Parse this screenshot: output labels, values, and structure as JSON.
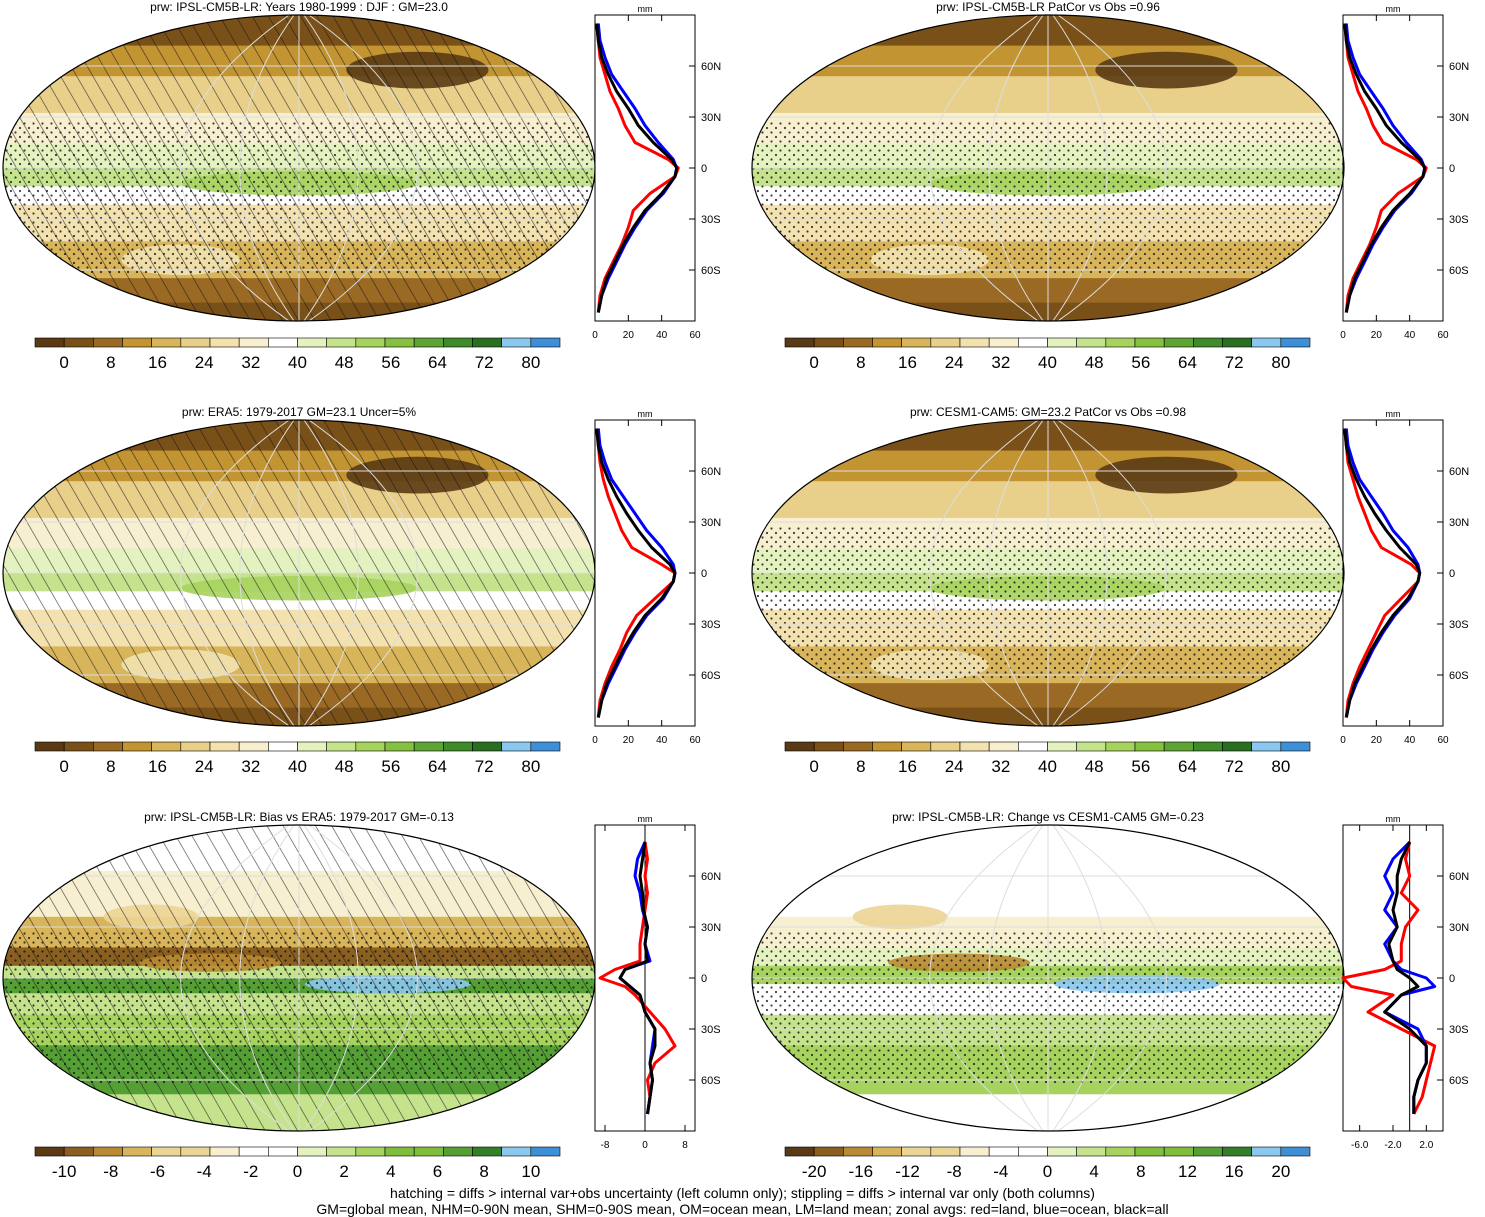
{
  "figure": {
    "footer_line1": "hatching = diffs > internal var+obs uncertainty (left column only); stippling = diffs > internal var only (both columns)",
    "footer_line2": "GM=global mean, NHM=0-90N mean, SHM=0-90S mean, OM=ocean mean, LM=land mean; zonal avgs: red=land, blue=ocean, black=all"
  },
  "colors": {
    "land": "#ff0000",
    "ocean": "#0000ff",
    "all": "#000000",
    "palette_abs": [
      "#5a3a14",
      "#7a5019",
      "#9a6a24",
      "#c29432",
      "#d8b45a",
      "#e8cf8a",
      "#f3e2b0",
      "#f8efd0",
      "#ffffff",
      "#e4f2bf",
      "#c5e38c",
      "#a6d35e",
      "#86c040",
      "#5ea334",
      "#3f8a2a",
      "#2a6e22",
      "#8ac8f0",
      "#3f8fd6"
    ]
  },
  "panels": [
    {
      "title": "prw: IPSL-CM5B-LR: Years 1980-1999 : DJF : GM=23.0",
      "overlay": "hatch+stipple",
      "colorbar_labels": [
        "0",
        "8",
        "16",
        "24",
        "32",
        "40",
        "48",
        "56",
        "64",
        "72",
        "80"
      ],
      "zonal": {
        "unit": "mm",
        "xticks": [
          "0",
          "20",
          "40",
          "60"
        ],
        "xlim": [
          0,
          60
        ],
        "lat_labels": [
          "60N",
          "30N",
          "0",
          "30S",
          "60S"
        ]
      }
    },
    {
      "title": "prw: IPSL-CM5B-LR PatCor vs Obs =0.96",
      "overlay": "stipple",
      "colorbar_labels": [
        "0",
        "8",
        "16",
        "24",
        "32",
        "40",
        "48",
        "56",
        "64",
        "72",
        "80"
      ],
      "zonal": {
        "unit": "mm",
        "xticks": [
          "0",
          "20",
          "40",
          "60"
        ],
        "xlim": [
          0,
          60
        ],
        "lat_labels": [
          "60N",
          "30N",
          "0",
          "30S",
          "60S"
        ]
      }
    },
    {
      "title": "prw: ERA5: 1979-2017 GM=23.1 Uncer=5%",
      "overlay": "hatch",
      "colorbar_labels": [
        "0",
        "8",
        "16",
        "24",
        "32",
        "40",
        "48",
        "56",
        "64",
        "72",
        "80"
      ],
      "zonal": {
        "unit": "mm",
        "xticks": [
          "0",
          "20",
          "40",
          "60"
        ],
        "xlim": [
          0,
          60
        ],
        "lat_labels": [
          "60N",
          "30N",
          "0",
          "30S",
          "60S"
        ]
      }
    },
    {
      "title": "prw: CESM1-CAM5: GM=23.2 PatCor vs Obs =0.98",
      "overlay": "stipple",
      "colorbar_labels": [
        "0",
        "8",
        "16",
        "24",
        "32",
        "40",
        "48",
        "56",
        "64",
        "72",
        "80"
      ],
      "zonal": {
        "unit": "mm",
        "xticks": [
          "0",
          "20",
          "40",
          "60"
        ],
        "xlim": [
          0,
          60
        ],
        "lat_labels": [
          "60N",
          "30N",
          "0",
          "30S",
          "60S"
        ]
      }
    },
    {
      "title": "prw: IPSL-CM5B-LR: Bias vs ERA5: 1979-2017 GM=-0.13",
      "overlay": "hatch+stipple",
      "colorbar_labels": [
        "-10",
        "-8",
        "-6",
        "-4",
        "-2",
        "0",
        "2",
        "4",
        "6",
        "8",
        "10"
      ],
      "zonal": {
        "unit": "mm",
        "xticks": [
          "-8",
          "0",
          "8"
        ],
        "xlim": [
          -10,
          10
        ],
        "lat_labels": [
          "60N",
          "30N",
          "0",
          "30S",
          "60S"
        ]
      }
    },
    {
      "title": "prw: IPSL-CM5B-LR: Change vs CESM1-CAM5 GM=-0.23",
      "overlay": "stipple",
      "colorbar_labels": [
        "-20",
        "-16",
        "-12",
        "-8",
        "-4",
        "0",
        "4",
        "8",
        "12",
        "16",
        "20"
      ],
      "zonal": {
        "unit": "mm",
        "xticks": [
          "-6.0",
          "-2.0",
          "2.0"
        ],
        "xlim": [
          -8,
          4
        ],
        "lat_labels": [
          "60N",
          "30N",
          "0",
          "30S",
          "60S"
        ]
      }
    }
  ],
  "chart_data": [
    {
      "type": "line",
      "title": "prw: IPSL-CM5B-LR: Years 1980-1999 : DJF : GM=23.0",
      "xlabel": "mm",
      "xlim": [
        0,
        60
      ],
      "ylim": [
        -90,
        90
      ],
      "y": [
        -85,
        -75,
        -65,
        -55,
        -45,
        -35,
        -25,
        -15,
        -5,
        0,
        5,
        15,
        25,
        35,
        45,
        55,
        65,
        75,
        85
      ],
      "series": [
        {
          "name": "land",
          "values": [
            2,
            3,
            6,
            11,
            16,
            20,
            23,
            33,
            48,
            50,
            44,
            24,
            18,
            14,
            9,
            6,
            3,
            2,
            1
          ]
        },
        {
          "name": "ocean",
          "values": [
            2,
            4,
            8,
            13,
            18,
            24,
            31,
            41,
            48,
            49,
            47,
            38,
            30,
            24,
            17,
            10,
            6,
            3,
            2
          ]
        },
        {
          "name": "all",
          "values": [
            2,
            4,
            7,
            12,
            17,
            23,
            30,
            40,
            48,
            49,
            46,
            35,
            26,
            20,
            13,
            8,
            4,
            2,
            1
          ]
        }
      ]
    },
    {
      "type": "line",
      "title": "prw: IPSL-CM5B-LR PatCor vs Obs =0.96",
      "xlabel": "mm",
      "xlim": [
        0,
        60
      ],
      "ylim": [
        -90,
        90
      ],
      "y": [
        -85,
        -75,
        -65,
        -55,
        -45,
        -35,
        -25,
        -15,
        -5,
        0,
        5,
        15,
        25,
        35,
        45,
        55,
        65,
        75,
        85
      ],
      "series": [
        {
          "name": "land",
          "values": [
            2,
            3,
            6,
            11,
            16,
            20,
            23,
            33,
            48,
            50,
            44,
            24,
            18,
            14,
            9,
            6,
            3,
            2,
            1
          ]
        },
        {
          "name": "ocean",
          "values": [
            2,
            4,
            8,
            13,
            18,
            24,
            31,
            41,
            48,
            49,
            47,
            38,
            30,
            24,
            17,
            10,
            6,
            3,
            2
          ]
        },
        {
          "name": "all",
          "values": [
            2,
            4,
            7,
            12,
            17,
            23,
            30,
            40,
            48,
            49,
            46,
            35,
            26,
            20,
            13,
            8,
            4,
            2,
            1
          ]
        }
      ]
    },
    {
      "type": "line",
      "title": "prw: ERA5: 1979-2017 GM=23.1 Uncer=5%",
      "xlabel": "mm",
      "xlim": [
        0,
        60
      ],
      "ylim": [
        -90,
        90
      ],
      "y": [
        -85,
        -75,
        -65,
        -55,
        -45,
        -35,
        -25,
        -15,
        -5,
        0,
        5,
        15,
        25,
        35,
        45,
        55,
        65,
        75,
        85
      ],
      "series": [
        {
          "name": "land",
          "values": [
            2,
            3,
            6,
            10,
            15,
            19,
            25,
            36,
            47,
            48,
            40,
            22,
            16,
            12,
            8,
            5,
            3,
            2,
            1
          ]
        },
        {
          "name": "ocean",
          "values": [
            2,
            4,
            8,
            13,
            18,
            24,
            31,
            41,
            47,
            48,
            47,
            40,
            31,
            24,
            17,
            10,
            6,
            3,
            2
          ]
        },
        {
          "name": "all",
          "values": [
            2,
            4,
            7,
            12,
            17,
            23,
            30,
            40,
            47,
            48,
            45,
            34,
            26,
            19,
            13,
            8,
            4,
            2,
            1
          ]
        }
      ]
    },
    {
      "type": "line",
      "title": "prw: CESM1-CAM5: GM=23.2 PatCor vs Obs =0.98",
      "xlabel": "mm",
      "xlim": [
        0,
        60
      ],
      "ylim": [
        -90,
        90
      ],
      "y": [
        -85,
        -75,
        -65,
        -55,
        -45,
        -35,
        -25,
        -15,
        -5,
        0,
        5,
        15,
        25,
        35,
        45,
        55,
        65,
        75,
        85
      ],
      "series": [
        {
          "name": "land",
          "values": [
            2,
            3,
            6,
            10,
            15,
            20,
            25,
            35,
            45,
            46,
            41,
            23,
            17,
            13,
            9,
            6,
            3,
            2,
            1
          ]
        },
        {
          "name": "ocean",
          "values": [
            2,
            4,
            8,
            13,
            18,
            24,
            31,
            40,
            45,
            46,
            45,
            39,
            30,
            24,
            17,
            10,
            6,
            3,
            2
          ]
        },
        {
          "name": "all",
          "values": [
            2,
            4,
            7,
            12,
            17,
            23,
            30,
            39,
            45,
            46,
            44,
            34,
            26,
            19,
            13,
            8,
            4,
            2,
            1
          ]
        }
      ]
    },
    {
      "type": "line",
      "title": "prw: IPSL-CM5B-LR: Bias vs ERA5: 1979-2017 GM=-0.13",
      "xlabel": "mm",
      "xlim": [
        -10,
        10
      ],
      "ylim": [
        -90,
        90
      ],
      "y": [
        -80,
        -70,
        -60,
        -50,
        -40,
        -30,
        -20,
        -10,
        -5,
        0,
        5,
        10,
        20,
        30,
        40,
        50,
        60,
        70,
        80
      ],
      "series": [
        {
          "name": "land",
          "values": [
            0.5,
            1,
            0.5,
            2,
            6,
            4,
            1,
            -2,
            -4,
            -9,
            -6,
            -1,
            -1,
            -0.5,
            0,
            0.5,
            0,
            0.5,
            0
          ]
        },
        {
          "name": "ocean",
          "values": [
            0.5,
            1,
            1.5,
            1,
            1.5,
            2,
            0,
            -1,
            -3,
            -5,
            -4,
            1,
            0,
            0.5,
            -0.5,
            -1,
            -2,
            -1.5,
            0
          ]
        },
        {
          "name": "all",
          "values": [
            0.5,
            1,
            1.5,
            1,
            2,
            2,
            0,
            -1,
            -3,
            -5,
            -4,
            0.5,
            0,
            0.5,
            -0.3,
            -0.5,
            -1,
            -0.5,
            0
          ]
        }
      ]
    },
    {
      "type": "line",
      "title": "prw: IPSL-CM5B-LR: Change vs CESM1-CAM5 GM=-0.23",
      "xlabel": "mm",
      "xlim": [
        -8,
        4
      ],
      "ylim": [
        -90,
        90
      ],
      "y": [
        -80,
        -70,
        -60,
        -50,
        -40,
        -30,
        -20,
        -10,
        -5,
        0,
        5,
        10,
        20,
        30,
        40,
        50,
        60,
        70,
        80
      ],
      "series": [
        {
          "name": "land",
          "values": [
            0.5,
            1.5,
            2,
            2.5,
            3,
            -1,
            -5,
            -2,
            -7,
            -8,
            -3,
            -1,
            -1,
            -0.5,
            1,
            -1,
            0,
            -0.5,
            0
          ]
        },
        {
          "name": "ocean",
          "values": [
            0.5,
            0.5,
            1,
            2,
            2,
            1,
            -3,
            -1,
            3,
            2,
            -1,
            -2,
            -3,
            -1.5,
            -3,
            -2,
            -3,
            -2,
            0
          ]
        },
        {
          "name": "all",
          "values": [
            0.5,
            0.5,
            1,
            2,
            2,
            0,
            -3,
            -1,
            1,
            0,
            -1.5,
            -2,
            -2.5,
            -1.5,
            -2,
            -1.5,
            -1.5,
            -1,
            0
          ]
        }
      ]
    }
  ]
}
